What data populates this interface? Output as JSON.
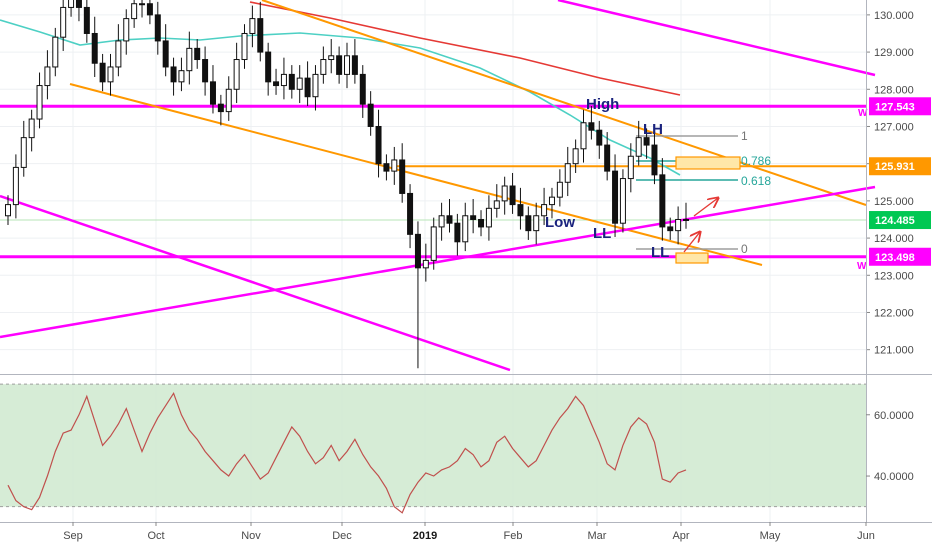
{
  "chart_data": [
    {
      "type": "candlestick",
      "role": "price",
      "y_axis_side": "right",
      "ylim": [
        120.4,
        130.4
      ],
      "y_ticks": [
        "130.000",
        "129.000",
        "128.000",
        "127.000",
        "126.000",
        "125.000",
        "124.000",
        "123.000",
        "122.000",
        "121.000"
      ],
      "x_ticks": [
        "Sep",
        "Oct",
        "Nov",
        "Dec",
        "2019",
        "Feb",
        "Mar",
        "Apr",
        "May",
        "Jun"
      ],
      "bold_x_tick": "2019",
      "grid": true,
      "series_close": [
        124.9,
        125.9,
        126.7,
        127.2,
        128.1,
        128.6,
        129.4,
        130.2,
        130.5,
        130.2,
        129.5,
        128.7,
        128.2,
        128.6,
        129.3,
        129.9,
        130.3,
        130.3,
        130.0,
        129.3,
        128.6,
        128.2,
        128.5,
        129.1,
        128.8,
        128.2,
        127.6,
        127.4,
        128.0,
        128.8,
        129.5,
        129.9,
        129.0,
        128.2,
        128.1,
        128.4,
        128.0,
        128.3,
        127.8,
        128.4,
        128.8,
        128.9,
        128.4,
        128.9,
        128.4,
        127.6,
        127.0,
        126.0,
        125.8,
        126.1,
        125.2,
        124.1,
        123.2,
        123.4,
        124.3,
        124.6,
        124.4,
        123.9,
        124.6,
        124.5,
        124.3,
        124.8,
        125.0,
        125.4,
        124.9,
        124.6,
        124.2,
        124.6,
        124.9,
        125.1,
        125.5,
        126.0,
        126.4,
        127.1,
        126.9,
        126.5,
        125.8,
        124.4,
        125.6,
        126.2,
        126.7,
        126.5,
        125.7,
        124.3,
        124.2,
        124.5,
        124.5
      ],
      "levels": [
        {
          "value": "127.543",
          "color": "#ff00ff"
        },
        {
          "value": "125.931",
          "color": "#ff9800"
        },
        {
          "value": "124.485",
          "color": "#00c853"
        },
        {
          "value": "123.498",
          "color": "#ff00ff"
        }
      ],
      "fibonacci": [
        "1",
        "0.786",
        "0.618",
        "0"
      ],
      "annotations": [
        "High",
        "LH",
        "Low",
        "LL",
        "LL",
        "W",
        "W"
      ]
    },
    {
      "type": "line",
      "role": "oscillator",
      "y_axis_side": "right",
      "ylim": [
        25,
        72
      ],
      "y_ticks": [
        "60.0000",
        "40.0000"
      ],
      "band": [
        30,
        70
      ],
      "values": [
        37,
        32,
        30,
        29,
        33,
        40,
        48,
        54,
        55,
        60,
        66,
        58,
        50,
        53,
        57,
        62,
        55,
        48,
        54,
        59,
        63,
        67,
        60,
        55,
        52,
        48,
        45,
        42,
        40,
        44,
        47,
        43,
        39,
        41,
        46,
        51,
        56,
        53,
        48,
        44,
        46,
        50,
        45,
        48,
        52,
        47,
        43,
        40,
        36,
        30,
        28,
        34,
        38,
        41,
        40,
        42,
        43,
        45,
        49,
        47,
        43,
        45,
        51,
        53,
        49,
        46,
        43,
        45,
        50,
        55,
        59,
        62,
        66,
        63,
        57,
        51,
        44,
        42,
        50,
        56,
        59,
        57,
        51,
        39,
        38,
        41,
        42
      ]
    }
  ]
}
